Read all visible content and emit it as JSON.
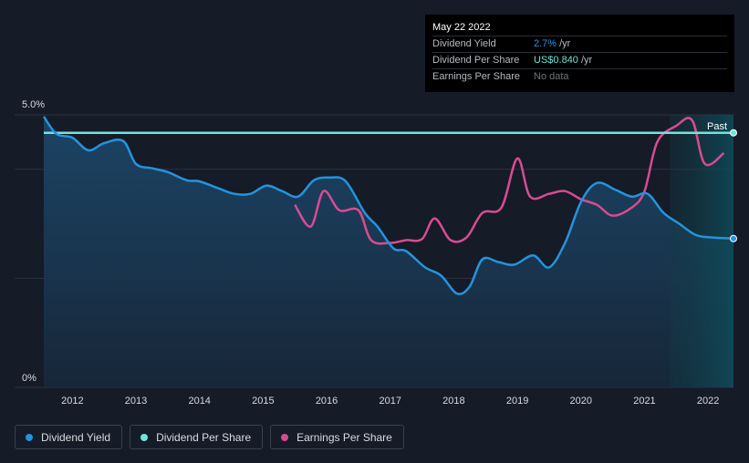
{
  "tooltip": {
    "date": "May 22 2022",
    "rows": [
      {
        "label": "Dividend Yield",
        "value": "2.7%",
        "unit": "/yr"
      },
      {
        "label": "Dividend Per Share",
        "value": "US$0.840",
        "unit": "/yr"
      },
      {
        "label": "Earnings Per Share",
        "value": "No data",
        "unit": ""
      }
    ]
  },
  "legend": {
    "items": [
      {
        "label": "Dividend Yield",
        "color": "#2394df"
      },
      {
        "label": "Dividend Per Share",
        "color": "#6fe5dc"
      },
      {
        "label": "Earnings Per Share",
        "color": "#d84b92"
      }
    ]
  },
  "chart_data": {
    "type": "line",
    "title": "",
    "xlabel": "",
    "ylabel": "",
    "xlim": [
      2011.55,
      2022.4
    ],
    "ylim": [
      0,
      5.0
    ],
    "y_tick_labels": [
      "5.0%",
      "0%"
    ],
    "x_tick_labels": [
      "2012",
      "2013",
      "2014",
      "2015",
      "2016",
      "2017",
      "2018",
      "2019",
      "2020",
      "2021",
      "2022"
    ],
    "x_tick_values": [
      2012,
      2013,
      2014,
      2015,
      2016,
      2017,
      2018,
      2019,
      2020,
      2021,
      2022
    ],
    "past_label": "Past",
    "past_start": 2021.4,
    "colors": {
      "yield": "#2394df",
      "dps": "#6fe5dc",
      "eps": "#d84b92"
    },
    "series": [
      {
        "name": "Dividend Yield",
        "unit": "%",
        "x": [
          2011.55,
          2011.75,
          2012.0,
          2012.25,
          2012.5,
          2012.8,
          2013.0,
          2013.25,
          2013.5,
          2013.8,
          2014.0,
          2014.3,
          2014.55,
          2014.8,
          2015.05,
          2015.3,
          2015.55,
          2015.8,
          2016.05,
          2016.3,
          2016.6,
          2016.8,
          2017.05,
          2017.25,
          2017.55,
          2017.8,
          2018.05,
          2018.25,
          2018.45,
          2018.7,
          2018.95,
          2019.25,
          2019.5,
          2019.75,
          2020.0,
          2020.25,
          2020.55,
          2020.8,
          2021.05,
          2021.3,
          2021.55,
          2021.8,
          2022.05,
          2022.4
        ],
        "values": [
          4.97,
          4.65,
          4.58,
          4.35,
          4.48,
          4.52,
          4.1,
          4.02,
          3.95,
          3.8,
          3.78,
          3.65,
          3.55,
          3.55,
          3.7,
          3.6,
          3.5,
          3.8,
          3.85,
          3.78,
          3.2,
          2.95,
          2.55,
          2.5,
          2.2,
          2.05,
          1.72,
          1.85,
          2.35,
          2.3,
          2.25,
          2.42,
          2.2,
          2.65,
          3.4,
          3.75,
          3.62,
          3.5,
          3.55,
          3.2,
          3.0,
          2.8,
          2.75,
          2.73
        ]
      },
      {
        "name": "Dividend Per Share",
        "unit": "US$",
        "x": [
          2011.55,
          2022.4
        ],
        "values": [
          0.84,
          0.84
        ]
      },
      {
        "name": "Earnings Per Share",
        "unit": "US$",
        "x": [
          2015.5,
          2015.75,
          2015.95,
          2016.2,
          2016.5,
          2016.7,
          2017.0,
          2017.25,
          2017.5,
          2017.7,
          2017.95,
          2018.2,
          2018.45,
          2018.75,
          2019.0,
          2019.2,
          2019.5,
          2019.75,
          2020.0,
          2020.25,
          2020.5,
          2020.8,
          2021.0,
          2021.2,
          2021.5,
          2021.75,
          2021.95,
          2022.25
        ],
        "values": [
          3.35,
          2.95,
          3.6,
          3.25,
          3.25,
          2.7,
          2.65,
          2.7,
          2.72,
          3.1,
          2.7,
          2.75,
          3.2,
          3.3,
          4.2,
          3.5,
          3.55,
          3.6,
          3.45,
          3.35,
          3.15,
          3.3,
          3.6,
          4.5,
          4.8,
          4.9,
          4.1,
          4.3
        ]
      }
    ]
  }
}
